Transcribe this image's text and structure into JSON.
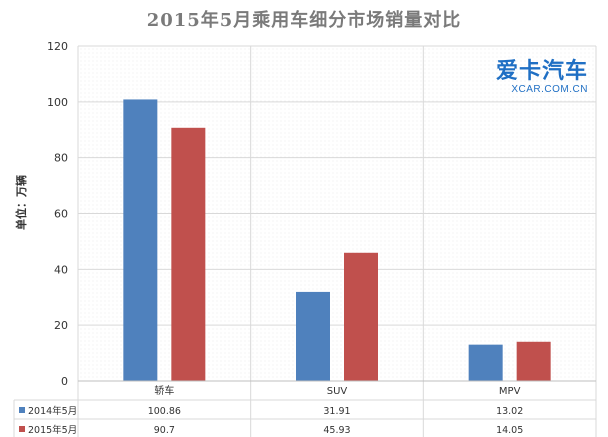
{
  "chart_data": {
    "type": "bar",
    "title": "2015年5月乘用车细分市场销量对比",
    "ylabel": "单位：万辆",
    "xlabel": "",
    "ylim": [
      0,
      120
    ],
    "yticks": [
      0,
      20,
      40,
      60,
      80,
      100,
      120
    ],
    "grid": true,
    "legend": "table-below",
    "categories": [
      "轿车",
      "SUV",
      "MPV"
    ],
    "series": [
      {
        "name": "2014年5月",
        "color": "#4f81bd",
        "values": [
          100.86,
          31.91,
          13.02
        ],
        "labels": [
          "100.86",
          "31.91",
          "13.02"
        ]
      },
      {
        "name": "2015年5月",
        "color": "#c0504d",
        "values": [
          90.7,
          45.93,
          14.05
        ],
        "labels": [
          "90.7",
          "45.93",
          "14.05"
        ]
      }
    ]
  },
  "watermark": {
    "cn": "爱卡汽车",
    "en": "XCAR.COM.CN"
  }
}
